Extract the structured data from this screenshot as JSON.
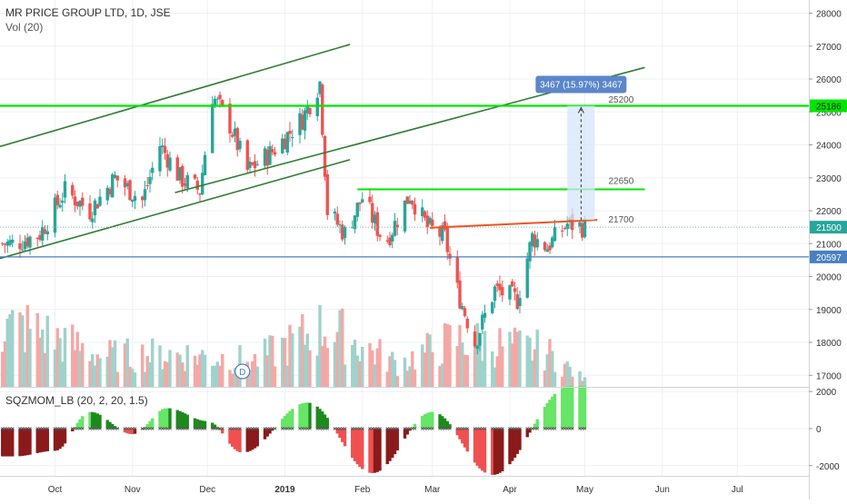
{
  "header": {
    "symbol_line": "MR PRICE GROUP LTD, 1D, JSE",
    "volume_line": "Vol (20)",
    "oscillator_line": "SQZMOM_LB (20, 2, 20, 1.5)"
  },
  "colors": {
    "up": "#26a69a",
    "down": "#ef5350",
    "vol_up": "#9fd2cb",
    "vol_down": "#f4a8a6",
    "channel": "#2e7d32",
    "level_green": "#00e600",
    "level_blue": "#4a7fc1",
    "resistance": "#f4511e",
    "measure": "#4a7fc1",
    "osc_bright_green": "#66e566",
    "osc_dark_green": "#1e8a1e",
    "osc_bright_red": "#f05050",
    "osc_dark_red": "#8b1a1a"
  },
  "chart_data": [
    {
      "type": "candlestick",
      "title": "MR PRICE GROUP LTD, 1D, JSE",
      "x_ticks": [
        "Oct",
        "Nov",
        "Dec",
        "2019",
        "Feb",
        "Mar",
        "Apr",
        "May",
        "Jun",
        "Jul"
      ],
      "y_ticks": [
        17000,
        18000,
        19000,
        20000,
        21000,
        22000,
        23000,
        24000,
        25000,
        26000,
        27000,
        28000
      ],
      "ylim": [
        16650,
        28400
      ],
      "price_markers": [
        {
          "label": "25186",
          "value": 25186
        },
        {
          "label": "21500",
          "value": 21500
        },
        {
          "label": "20597",
          "value": 20597
        }
      ],
      "annotations": [
        {
          "text": "25200",
          "value": 25200
        },
        {
          "text": "22650",
          "value": 22650
        },
        {
          "text": "21700",
          "value": 21700
        },
        {
          "text": "3467 (15.97%) 3467"
        },
        {
          "text": "D"
        }
      ],
      "close_series": [
        {
          "date": "2018-09-15",
          "close": 21000
        },
        {
          "date": "2018-09-25",
          "close": 21300
        },
        {
          "date": "2018-10-05",
          "close": 22600
        },
        {
          "date": "2018-10-15",
          "close": 22000
        },
        {
          "date": "2018-10-25",
          "close": 23000
        },
        {
          "date": "2018-11-05",
          "close": 22300
        },
        {
          "date": "2018-11-12",
          "close": 24000
        },
        {
          "date": "2018-11-20",
          "close": 23000
        },
        {
          "date": "2018-11-28",
          "close": 22600
        },
        {
          "date": "2018-12-03",
          "close": 25500
        },
        {
          "date": "2018-12-10",
          "close": 24600
        },
        {
          "date": "2018-12-17",
          "close": 23200
        },
        {
          "date": "2018-12-27",
          "close": 23800
        },
        {
          "date": "2019-01-08",
          "close": 24800
        },
        {
          "date": "2019-01-15",
          "close": 25900
        },
        {
          "date": "2019-01-18",
          "close": 22000
        },
        {
          "date": "2019-01-25",
          "close": 21300
        },
        {
          "date": "2019-02-01",
          "close": 22400
        },
        {
          "date": "2019-02-10",
          "close": 21000
        },
        {
          "date": "2019-02-20",
          "close": 22500
        },
        {
          "date": "2019-02-27",
          "close": 21500
        },
        {
          "date": "2019-03-06",
          "close": 21200
        },
        {
          "date": "2019-03-10",
          "close": 19800
        },
        {
          "date": "2019-03-18",
          "close": 18000
        },
        {
          "date": "2019-03-26",
          "close": 19600
        },
        {
          "date": "2019-04-04",
          "close": 19300
        },
        {
          "date": "2019-04-10",
          "close": 21200
        },
        {
          "date": "2019-04-16",
          "close": 20900
        },
        {
          "date": "2019-04-24",
          "close": 21600
        },
        {
          "date": "2019-05-01",
          "close": 21500
        }
      ],
      "volume_series": [
        {
          "date": "2018-09-20",
          "volume": 3.6
        },
        {
          "date": "2018-10-20",
          "volume": 1.9
        },
        {
          "date": "2018-11-20",
          "volume": 2.0
        },
        {
          "date": "2018-12-20",
          "volume": 1.6
        },
        {
          "date": "2019-01-17",
          "volume": 3.7
        },
        {
          "date": "2019-02-15",
          "volume": 1.4
        },
        {
          "date": "2019-03-10",
          "volume": 2.9
        },
        {
          "date": "2019-04-15",
          "volume": 2.2
        },
        {
          "date": "2019-05-01",
          "volume": 0.4
        }
      ]
    },
    {
      "type": "bar",
      "title": "SQZMOM_LB (20, 2, 20, 1.5)",
      "y_ticks": [
        -2000,
        0,
        2000
      ],
      "ylim": [
        -2550,
        2200
      ],
      "momentum_series": [
        {
          "date": "2018-09-15",
          "value": -1500
        },
        {
          "date": "2018-10-01",
          "value": -1200
        },
        {
          "date": "2018-10-15",
          "value": 900
        },
        {
          "date": "2018-11-01",
          "value": -300
        },
        {
          "date": "2018-11-15",
          "value": 1100
        },
        {
          "date": "2018-12-01",
          "value": 400
        },
        {
          "date": "2018-12-15",
          "value": -1300
        },
        {
          "date": "2019-01-10",
          "value": 1400
        },
        {
          "date": "2019-02-05",
          "value": -2400
        },
        {
          "date": "2019-03-01",
          "value": 900
        },
        {
          "date": "2019-03-25",
          "value": -2500
        },
        {
          "date": "2019-04-25",
          "value": 2300
        }
      ]
    }
  ]
}
